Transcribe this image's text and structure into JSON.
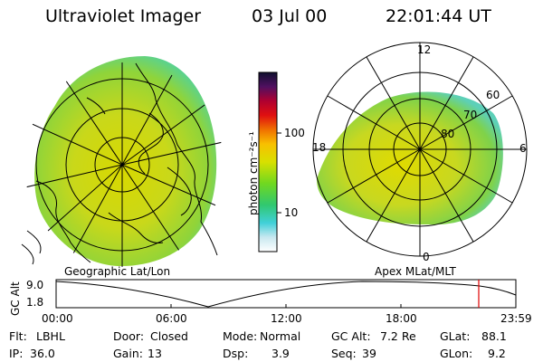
{
  "header": {
    "title": "Ultraviolet Imager",
    "date": "03 Jul 00",
    "time": "22:01:44 UT"
  },
  "left_panel": {
    "caption": "Geographic Lat/Lon"
  },
  "right_panel": {
    "caption": "Apex MLat/MLT",
    "mlt_labels": {
      "top": "12",
      "bottom": "0",
      "left": "18",
      "right": "6"
    },
    "lat_labels": [
      "60",
      "70",
      "80"
    ]
  },
  "colorbar": {
    "label": "photon cm⁻²s⁻¹",
    "ticks": [
      "100",
      "10"
    ]
  },
  "altitude_plot": {
    "ylabel": "GC Alt",
    "yticks": [
      "9.0",
      "1.8"
    ],
    "xticks": [
      "00:00",
      "06:00",
      "12:00",
      "18:00",
      "23:59"
    ]
  },
  "footer": {
    "row1": [
      {
        "label": "Flt:",
        "value": "LBHL"
      },
      {
        "label": "Door:",
        "value": "Closed"
      },
      {
        "label": "Mode:",
        "value": "Normal"
      },
      {
        "label": "GC Alt:",
        "value": "7.2 Re"
      },
      {
        "label": "GLat:",
        "value": "88.1"
      }
    ],
    "row2": [
      {
        "label": "IP:",
        "value": "36.0"
      },
      {
        "label": "Gain:",
        "value": "13"
      },
      {
        "label": "Dsp:",
        "value": "3.9"
      },
      {
        "label": "Seq:",
        "value": "39"
      },
      {
        "label": "GLon:",
        "value": "9.2"
      }
    ]
  }
}
